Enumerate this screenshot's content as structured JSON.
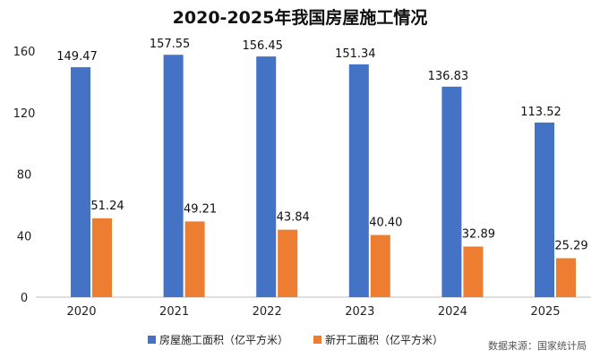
{
  "chart_data": {
    "type": "bar",
    "title": "2020-2025年我国房屋施工情况",
    "categories": [
      "2020",
      "2021",
      "2022",
      "2023",
      "2024",
      "2025"
    ],
    "series": [
      {
        "name": "房屋施工面积（亿平方米）",
        "color": "#4472c4",
        "values": [
          149.47,
          157.55,
          156.45,
          151.34,
          136.83,
          113.52
        ]
      },
      {
        "name": "新开工面积（亿平方米）",
        "color": "#ed7d31",
        "values": [
          51.24,
          49.21,
          43.84,
          40.4,
          32.89,
          25.29
        ]
      }
    ],
    "value_labels": [
      [
        "149.47",
        "157.55",
        "156.45",
        "151.34",
        "136.83",
        "113.52"
      ],
      [
        "51.24",
        "49.21",
        "43.84",
        "40.40",
        "32.89",
        "25.29"
      ]
    ],
    "yticks": [
      "0",
      "40",
      "80",
      "120",
      "160"
    ],
    "ylim": [
      0,
      170
    ],
    "grid": false,
    "legend_position": "bottom",
    "xlabel": "",
    "ylabel": ""
  },
  "source_note": "数据来源：国家统计局"
}
